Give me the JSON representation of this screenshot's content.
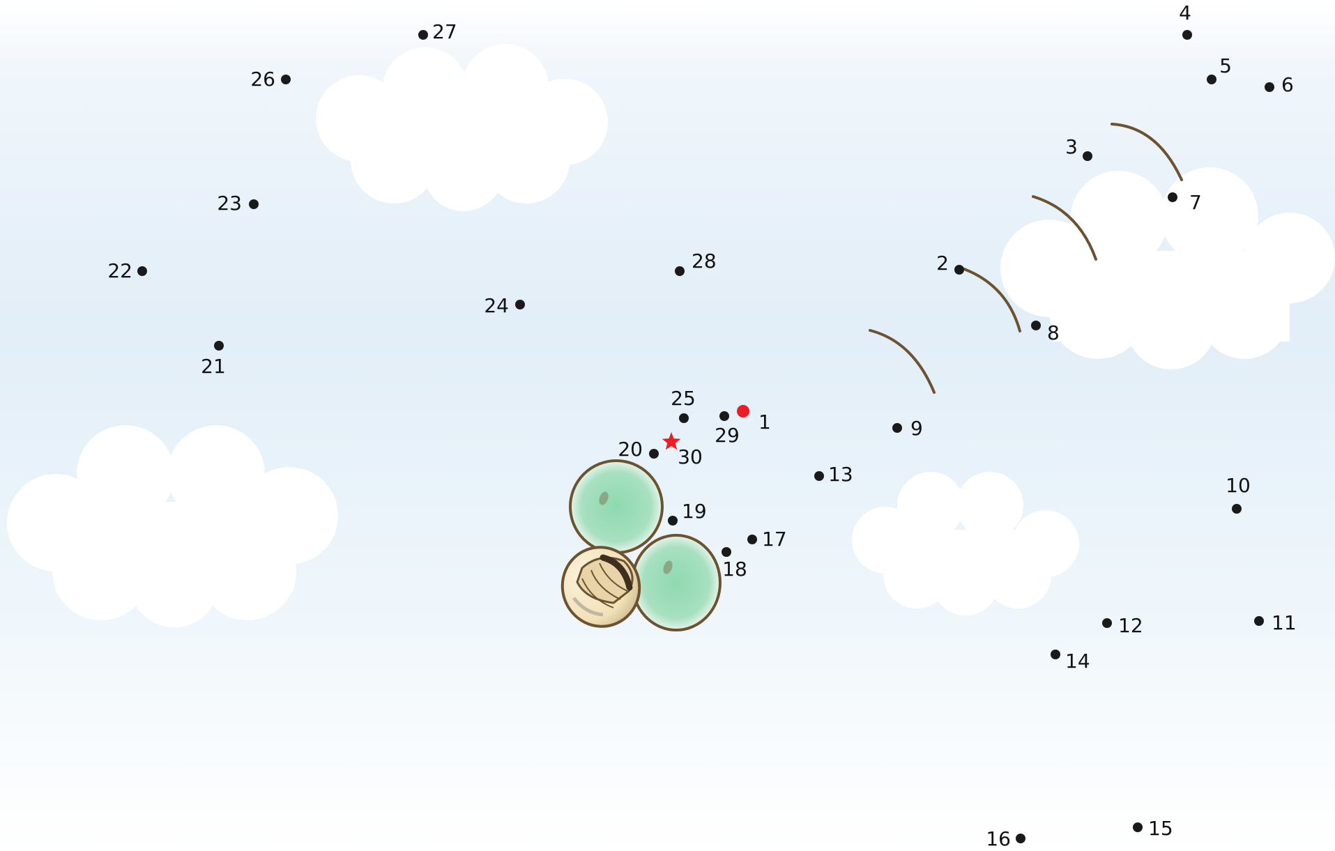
{
  "puzzle": {
    "dots": [
      {
        "n": "1",
        "start": true
      },
      {
        "n": "2"
      },
      {
        "n": "3"
      },
      {
        "n": "4"
      },
      {
        "n": "5"
      },
      {
        "n": "6"
      },
      {
        "n": "7"
      },
      {
        "n": "8"
      },
      {
        "n": "9"
      },
      {
        "n": "10"
      },
      {
        "n": "11"
      },
      {
        "n": "12"
      },
      {
        "n": "13"
      },
      {
        "n": "14"
      },
      {
        "n": "15"
      },
      {
        "n": "16"
      },
      {
        "n": "17"
      },
      {
        "n": "18"
      },
      {
        "n": "19"
      },
      {
        "n": "20"
      },
      {
        "n": "21"
      },
      {
        "n": "22"
      },
      {
        "n": "23"
      },
      {
        "n": "24"
      },
      {
        "n": "25"
      },
      {
        "n": "26"
      },
      {
        "n": "27"
      },
      {
        "n": "28"
      },
      {
        "n": "29"
      },
      {
        "n": "30",
        "end": true
      }
    ]
  },
  "colors": {
    "sky_top": "#e3eff8",
    "sky_bottom": "#ffffff",
    "cloud": "#ffffff",
    "dot": "#1a1a1a",
    "start_dot": "#ee1c25",
    "end_star": "#ee1c25",
    "stroke_brown": "#6b5332",
    "bubble_green": "#9ddcb6",
    "shell": "#f5e7c6"
  },
  "icons": {
    "start": "red-start-dot",
    "end": "red-end-star"
  }
}
